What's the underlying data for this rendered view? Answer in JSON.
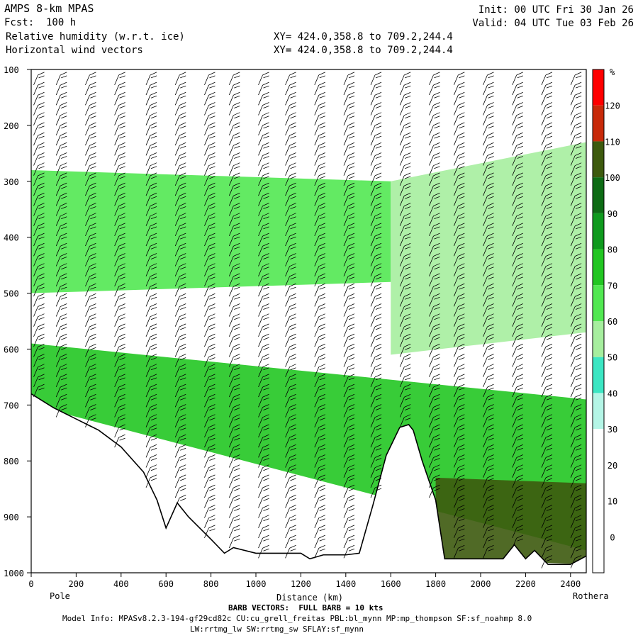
{
  "header": {
    "model": "AMPS 8-km MPAS",
    "forecast": "Fcst:  100 h",
    "field1": "Relative humidity (w.r.t. ice)",
    "field2": "Horizontal wind vectors",
    "xy1": "XY= 424.0,358.8 to 709.2,244.4",
    "xy2": "XY= 424.0,358.8 to 709.2,244.4",
    "init": "Init: 00 UTC Fri 30 Jan 26",
    "valid": "Valid: 04 UTC Tue 03 Feb 26"
  },
  "footer": {
    "barb": "BARB VECTORS:  FULL BARB = 10 kts",
    "model_info": "Model Info: MPASv8.2.3-194-gf29cd82c CU:cu_grell_freitas PBL:bl_mynn MP:mp_thompson SF:sf_noahmp 8.0",
    "physics": "LW:rrtmg_lw SW:rrtmg_sw SFLAY:sf_mynn"
  },
  "chart_data": {
    "type": "heatmap",
    "xlabel": "Distance (km)",
    "ylabel": "",
    "x_ticks": [
      0,
      200,
      400,
      600,
      800,
      1000,
      1200,
      1400,
      1600,
      1800,
      2000,
      2200,
      2400
    ],
    "y_ticks": [
      100,
      200,
      300,
      400,
      500,
      600,
      700,
      800,
      900,
      1000
    ],
    "xlim": [
      0,
      2470
    ],
    "ylim": [
      100,
      1000
    ],
    "x_end_labels": {
      "left": "Pole",
      "right": "Rothera"
    },
    "colorbar": {
      "unit": "%",
      "levels": [
        0,
        10,
        20,
        30,
        40,
        50,
        60,
        70,
        80,
        90,
        100,
        110,
        120
      ],
      "colors": [
        "#ffffff",
        "#ffffff",
        "#ffffff",
        "#ffffff",
        "#b4f5e6",
        "#3ce6c3",
        "#a6ee9e",
        "#52e852",
        "#22c622",
        "#0f9a1e",
        "#0d6b14",
        "#3d5a0e",
        "#c82a0a",
        "#ff0000"
      ]
    },
    "terrain_profile": {
      "x": [
        0,
        100,
        200,
        300,
        400,
        500,
        560,
        600,
        650,
        700,
        800,
        860,
        900,
        1000,
        1100,
        1200,
        1240,
        1300,
        1400,
        1460,
        1520,
        1580,
        1640,
        1680,
        1700,
        1740,
        1800,
        1840,
        2000,
        2100,
        2150,
        2200,
        2240,
        2300,
        2400,
        2470
      ],
      "p": [
        680,
        705,
        725,
        745,
        775,
        820,
        870,
        920,
        875,
        900,
        940,
        965,
        955,
        965,
        965,
        965,
        975,
        968,
        968,
        965,
        880,
        790,
        740,
        735,
        745,
        800,
        870,
        975,
        975,
        975,
        950,
        975,
        960,
        985,
        985,
        970
      ]
    },
    "rh_layers": [
      {
        "name": "upper moist layer",
        "x": [
          0,
          1600
        ],
        "p_top": [
          280,
          300
        ],
        "p_bottom": [
          500,
          480
        ],
        "rh": 65
      },
      {
        "name": "east moist column",
        "x": [
          1600,
          2470
        ],
        "p_top": [
          300,
          230
        ],
        "p_bottom": [
          610,
          570
        ],
        "rh": 55
      },
      {
        "name": "boundary layer",
        "x": [
          0,
          2470
        ],
        "p_top": [
          590,
          690
        ],
        "p_bottom": [
          700,
          960
        ],
        "rh": 75
      },
      {
        "name": "near-surface saturation",
        "x": [
          1800,
          2470
        ],
        "p_top": [
          830,
          840
        ],
        "p_bottom": [
          975,
          985
        ],
        "rh": 105
      }
    ],
    "wind_barb_columns_x": [
      30,
      130,
      260,
      390,
      530,
      660,
      790,
      900,
      1030,
      1150,
      1280,
      1410,
      1530,
      1660,
      1790,
      1900,
      2030,
      2160,
      2290,
      2420
    ]
  }
}
